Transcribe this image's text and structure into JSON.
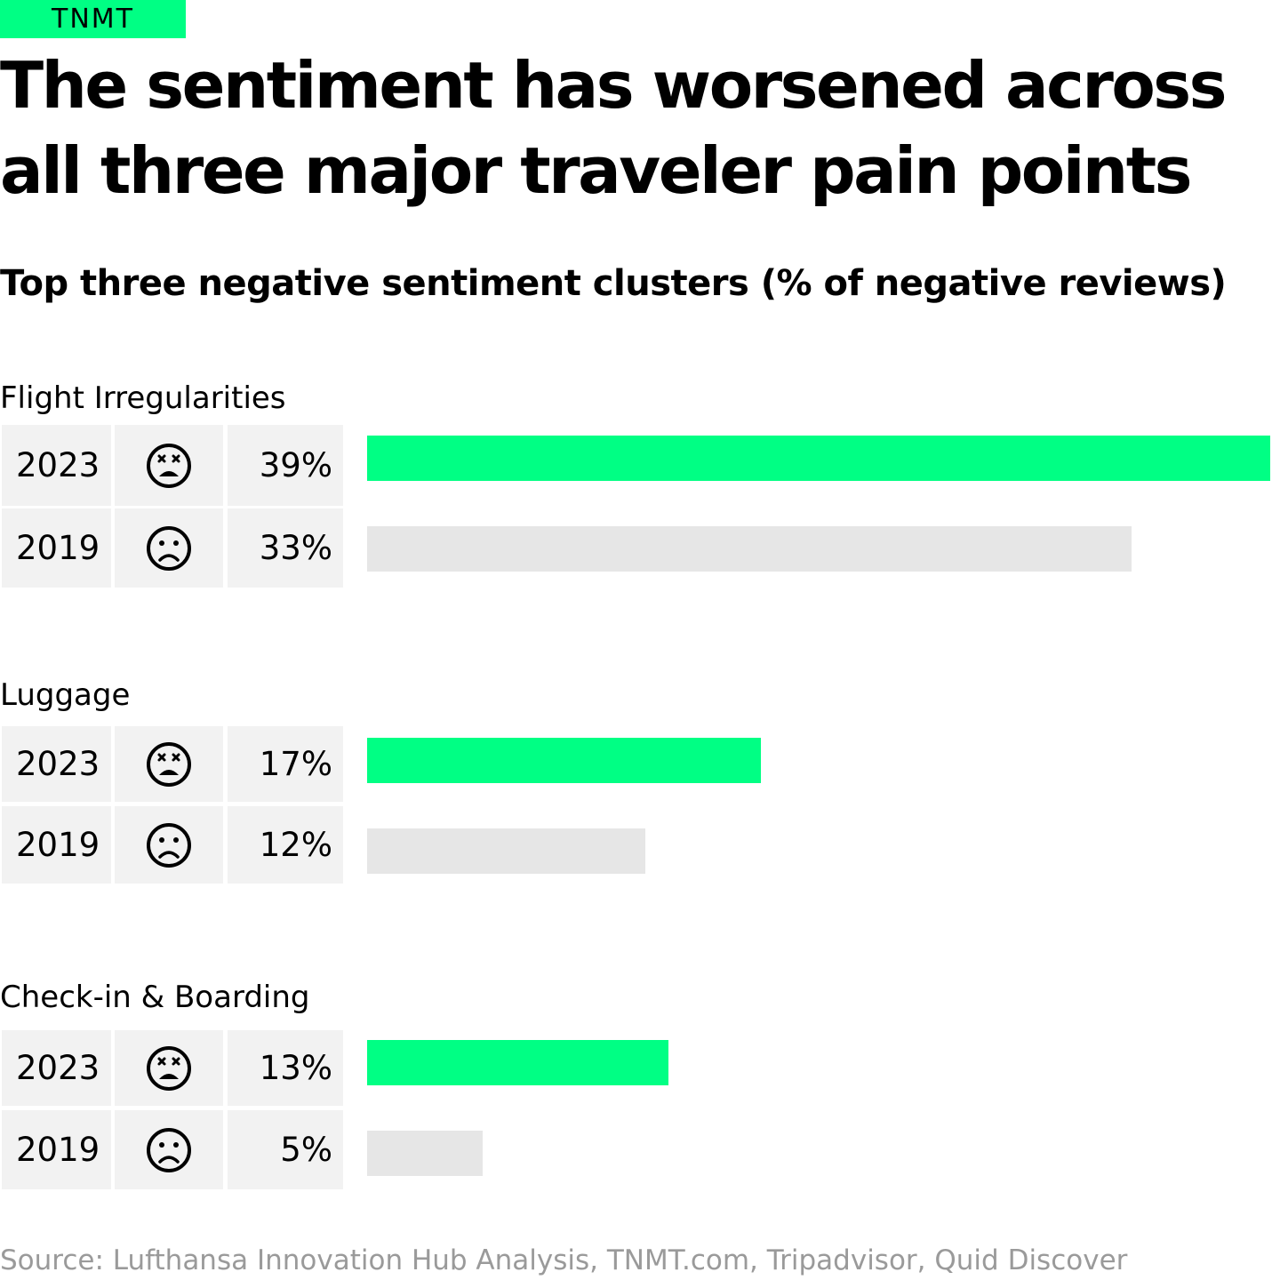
{
  "brand": "TNMT",
  "title": "The sentiment has worsened across\nall three major traveler pain points",
  "subtitle": "Top three negative sentiment clusters (% of negative reviews)",
  "source": "Source: Lufthansa Innovation Hub Analysis, TNMT.com, Tripadvisor, Quid Discover",
  "colors": {
    "accent": "#00ff84",
    "bar_2019": "#e6e6e6",
    "cell_background": "#f2f2f2",
    "source_text": "#9a9a9a"
  },
  "chart_data": {
    "type": "bar",
    "orientation": "horizontal",
    "title": "Top three negative sentiment clusters (% of negative reviews)",
    "unit": "%",
    "xlim": [
      0,
      39
    ],
    "groups": [
      {
        "label": "Flight Irregularities",
        "rows": [
          {
            "year": "2023",
            "value": 39,
            "display": "39%",
            "icon": "dizzy-face-icon"
          },
          {
            "year": "2019",
            "value": 33,
            "display": "33%",
            "icon": "frowning-face-icon"
          }
        ]
      },
      {
        "label": "Luggage",
        "rows": [
          {
            "year": "2023",
            "value": 17,
            "display": "17%",
            "icon": "dizzy-face-icon"
          },
          {
            "year": "2019",
            "value": 12,
            "display": "12%",
            "icon": "frowning-face-icon"
          }
        ]
      },
      {
        "label": "Check-in & Boarding",
        "rows": [
          {
            "year": "2023",
            "value": 13,
            "display": "13%",
            "icon": "dizzy-face-icon"
          },
          {
            "year": "2019",
            "value": 5,
            "display": "5%",
            "icon": "frowning-face-icon"
          }
        ]
      }
    ]
  }
}
